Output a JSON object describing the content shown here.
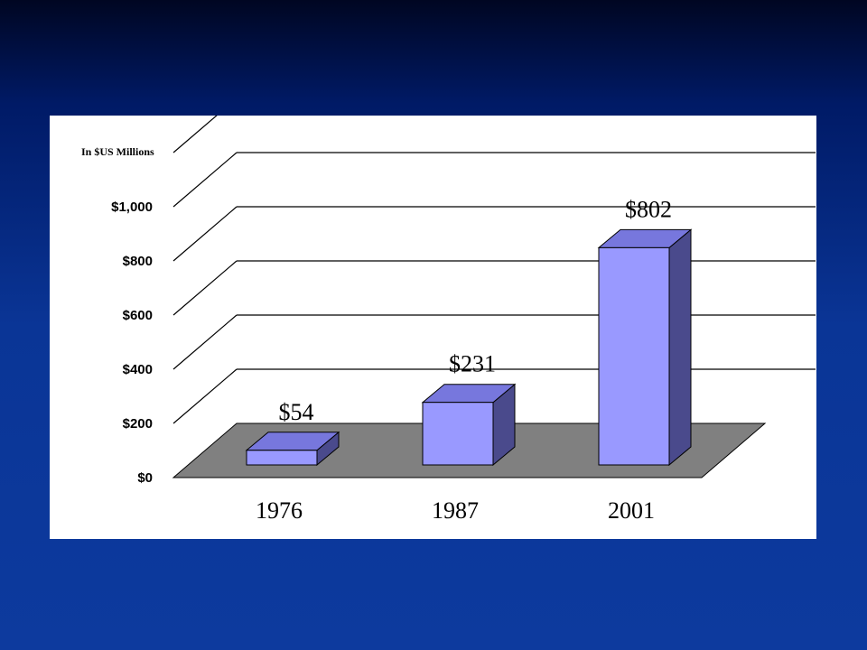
{
  "chart_data": {
    "type": "bar",
    "unit_label": "In $US Millions",
    "categories": [
      "1976",
      "1987",
      "2001"
    ],
    "values": [
      54,
      231,
      802
    ],
    "data_labels": [
      "$54",
      "$231",
      "$802"
    ],
    "y_ticks": [
      {
        "value": 0,
        "label": "$0"
      },
      {
        "value": 200,
        "label": "$200"
      },
      {
        "value": 400,
        "label": "$400"
      },
      {
        "value": 600,
        "label": "$600"
      },
      {
        "value": 800,
        "label": "$800"
      },
      {
        "value": 1000,
        "label": "$1,000"
      },
      {
        "value": 1200,
        "label": ""
      }
    ],
    "ylim": [
      0,
      1200
    ],
    "grid": true,
    "three_d": true,
    "colors": {
      "bar_front": "#9999ff",
      "bar_top": "#7777dd",
      "bar_side": "#4a4a8c",
      "floor": "#808080",
      "gridline": "#000000",
      "panel": "#ffffff"
    }
  }
}
